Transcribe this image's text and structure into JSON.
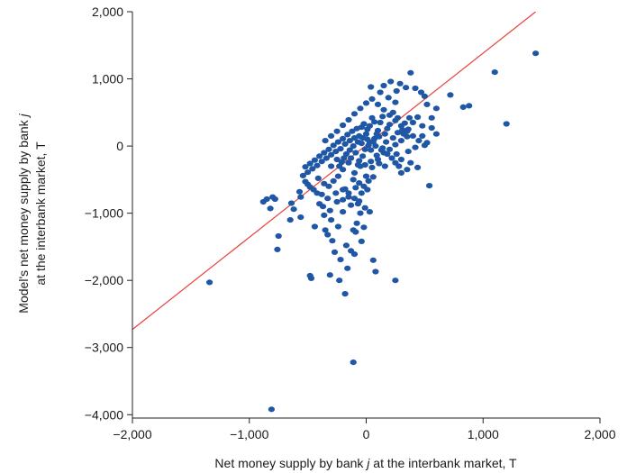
{
  "chart_data": {
    "type": "scatter",
    "title": "",
    "xlabel_parts": [
      "Net money supply by bank ",
      "j",
      " at the interbank market, T"
    ],
    "ylabel_line1_parts": [
      "Model's net money supply by bank ",
      "j"
    ],
    "ylabel_line2": "at the interbank market, T",
    "xlim": [
      -2000,
      2000
    ],
    "ylim": [
      -4050,
      2000
    ],
    "x_ticks": [
      -2000,
      -1000,
      0,
      1000,
      2000
    ],
    "x_tick_labels": [
      "−2,000",
      "−1,000",
      "0",
      "1,000",
      "2,000"
    ],
    "y_ticks": [
      -4000,
      -3000,
      -2000,
      -1000,
      0,
      1000,
      2000
    ],
    "y_tick_labels": [
      "−4,000",
      "−3,000",
      "−2,000",
      "−1,000",
      "0",
      "1,000",
      "2,000"
    ],
    "grid": false,
    "legend": "none",
    "reference_line": {
      "type": "fit",
      "x": [
        -2000,
        1450
      ],
      "y": [
        -2730,
        2000
      ],
      "color": "#e8403a"
    },
    "point_color": "#1f57a6",
    "points": [
      [
        -1340,
        -2030
      ],
      [
        -810,
        -3920
      ],
      [
        -110,
        -3220
      ],
      [
        -850,
        -790
      ],
      [
        -800,
        -760
      ],
      [
        -780,
        -790
      ],
      [
        -650,
        -1100
      ],
      [
        -640,
        -850
      ],
      [
        -620,
        -940
      ],
      [
        -560,
        -760
      ],
      [
        -560,
        -1060
      ],
      [
        -520,
        -530
      ],
      [
        -500,
        -570
      ],
      [
        -480,
        -610
      ],
      [
        -420,
        -700
      ],
      [
        -400,
        -860
      ],
      [
        -380,
        -720
      ],
      [
        -370,
        -900
      ],
      [
        -360,
        -1030
      ],
      [
        -350,
        -1250
      ],
      [
        -330,
        -1320
      ],
      [
        -310,
        -960
      ],
      [
        -300,
        -1100
      ],
      [
        -290,
        -1410
      ],
      [
        -270,
        -1580
      ],
      [
        -250,
        -830
      ],
      [
        -240,
        -1200
      ],
      [
        -220,
        -1690
      ],
      [
        -200,
        -980
      ],
      [
        -180,
        -640
      ],
      [
        -170,
        -1480
      ],
      [
        -160,
        -1820
      ],
      [
        -150,
        -760
      ],
      [
        -130,
        -1560
      ],
      [
        -110,
        -1250
      ],
      [
        -100,
        -1610
      ],
      [
        -90,
        -1280
      ],
      [
        -80,
        -1150
      ],
      [
        -70,
        -860
      ],
      [
        -50,
        -1000
      ],
      [
        -40,
        -1420
      ],
      [
        -20,
        -1210
      ],
      [
        -10,
        -920
      ],
      [
        10,
        -650
      ],
      [
        30,
        -980
      ],
      [
        60,
        -1700
      ],
      [
        80,
        -1870
      ],
      [
        250,
        -2000
      ],
      [
        -180,
        -2200
      ],
      [
        -230,
        -2000
      ],
      [
        -310,
        -1920
      ],
      [
        -480,
        -1930
      ],
      [
        -470,
        -1970
      ],
      [
        -760,
        -1540
      ],
      [
        -880,
        -830
      ],
      [
        -820,
        -930
      ],
      [
        -750,
        -1340
      ],
      [
        -440,
        -1200
      ],
      [
        540,
        -590
      ],
      [
        1200,
        330
      ],
      [
        880,
        600
      ],
      [
        1100,
        1100
      ],
      [
        1450,
        1380
      ],
      [
        830,
        580
      ],
      [
        720,
        760
      ],
      [
        600,
        560
      ],
      [
        500,
        740
      ],
      [
        380,
        1090
      ],
      [
        340,
        870
      ],
      [
        260,
        820
      ],
      [
        120,
        800
      ],
      [
        150,
        900
      ],
      [
        210,
        960
      ],
      [
        290,
        930
      ],
      [
        420,
        860
      ],
      [
        470,
        800
      ],
      [
        520,
        620
      ],
      [
        560,
        420
      ],
      [
        560,
        270
      ],
      [
        600,
        180
      ],
      [
        480,
        300
      ],
      [
        440,
        430
      ],
      [
        400,
        350
      ],
      [
        360,
        250
      ],
      [
        320,
        180
      ],
      [
        270,
        420
      ],
      [
        230,
        500
      ],
      [
        200,
        320
      ],
      [
        180,
        260
      ],
      [
        140,
        440
      ],
      [
        120,
        350
      ],
      [
        100,
        230
      ],
      [
        90,
        180
      ],
      [
        70,
        360
      ],
      [
        50,
        420
      ],
      [
        30,
        300
      ],
      [
        10,
        250
      ],
      [
        0,
        180
      ],
      [
        -20,
        330
      ],
      [
        -40,
        280
      ],
      [
        -60,
        150
      ],
      [
        -80,
        260
      ],
      [
        -100,
        120
      ],
      [
        -120,
        220
      ],
      [
        -140,
        80
      ],
      [
        -160,
        170
      ],
      [
        -180,
        30
      ],
      [
        -200,
        110
      ],
      [
        -220,
        -40
      ],
      [
        -240,
        60
      ],
      [
        -260,
        -80
      ],
      [
        -280,
        10
      ],
      [
        -300,
        -130
      ],
      [
        -320,
        -50
      ],
      [
        -340,
        -180
      ],
      [
        -360,
        -100
      ],
      [
        -380,
        -230
      ],
      [
        -400,
        -150
      ],
      [
        -420,
        -290
      ],
      [
        -440,
        -210
      ],
      [
        -460,
        -340
      ],
      [
        -480,
        -260
      ],
      [
        -500,
        -390
      ],
      [
        -520,
        -310
      ],
      [
        -540,
        -440
      ],
      [
        -300,
        -300
      ],
      [
        -250,
        -200
      ],
      [
        -200,
        -350
      ],
      [
        -150,
        -250
      ],
      [
        -100,
        -400
      ],
      [
        -50,
        -300
      ],
      [
        0,
        -450
      ],
      [
        50,
        -320
      ],
      [
        100,
        -200
      ],
      [
        150,
        -100
      ],
      [
        200,
        -50
      ],
      [
        250,
        20
      ],
      [
        300,
        80
      ],
      [
        350,
        140
      ],
      [
        -350,
        80
      ],
      [
        -300,
        150
      ],
      [
        -250,
        220
      ],
      [
        -200,
        310
      ],
      [
        -150,
        390
      ],
      [
        -100,
        480
      ],
      [
        -50,
        560
      ],
      [
        0,
        640
      ],
      [
        50,
        700
      ],
      [
        100,
        620
      ],
      [
        150,
        540
      ],
      [
        200,
        460
      ],
      [
        250,
        380
      ],
      [
        300,
        300
      ],
      [
        350,
        220
      ],
      [
        400,
        150
      ],
      [
        450,
        80
      ],
      [
        500,
        10
      ],
      [
        300,
        -400
      ],
      [
        280,
        -300
      ],
      [
        250,
        -250
      ],
      [
        220,
        -180
      ],
      [
        180,
        -120
      ],
      [
        130,
        -60
      ],
      [
        80,
        0
      ],
      [
        30,
        60
      ],
      [
        -30,
        120
      ],
      [
        -70,
        60
      ],
      [
        -110,
        0
      ],
      [
        -140,
        -60
      ],
      [
        -170,
        -120
      ],
      [
        -190,
        -180
      ],
      [
        -210,
        -240
      ],
      [
        -230,
        -300
      ],
      [
        -110,
        -500
      ],
      [
        -60,
        -550
      ],
      [
        -20,
        -600
      ],
      [
        20,
        -520
      ],
      [
        60,
        -460
      ],
      [
        -260,
        -700
      ],
      [
        -200,
        -650
      ],
      [
        -150,
        -700
      ],
      [
        -100,
        -780
      ],
      [
        -60,
        -820
      ],
      [
        -240,
        -450
      ],
      [
        -280,
        -520
      ],
      [
        -320,
        -600
      ],
      [
        -360,
        -560
      ],
      [
        -410,
        -480
      ],
      [
        440,
        -320
      ],
      [
        380,
        -250
      ],
      [
        350,
        -350
      ],
      [
        300,
        -200
      ],
      [
        260,
        -120
      ],
      [
        360,
        -80
      ],
      [
        420,
        -20
      ],
      [
        480,
        150
      ],
      [
        520,
        50
      ],
      [
        -30,
        -150
      ],
      [
        -60,
        -220
      ],
      [
        -90,
        -100
      ],
      [
        -130,
        -180
      ],
      [
        -40,
        40
      ],
      [
        10,
        100
      ],
      [
        60,
        60
      ],
      [
        110,
        140
      ],
      [
        160,
        180
      ],
      [
        40,
        -60
      ],
      [
        90,
        -140
      ],
      [
        140,
        -30
      ],
      [
        -10,
        -50
      ],
      [
        20,
        10
      ],
      [
        70,
        110
      ],
      [
        -70,
        -280
      ],
      [
        -10,
        -280
      ],
      [
        40,
        -230
      ],
      [
        110,
        -260
      ],
      [
        160,
        -300
      ],
      [
        170,
        60
      ],
      [
        230,
        120
      ],
      [
        270,
        200
      ],
      [
        310,
        240
      ],
      [
        330,
        340
      ],
      [
        370,
        420
      ],
      [
        -90,
        -620
      ],
      [
        -40,
        -700
      ],
      [
        -200,
        -800
      ],
      [
        -130,
        -880
      ],
      [
        -330,
        -780
      ],
      [
        -450,
        -650
      ],
      [
        -570,
        -680
      ],
      [
        40,
        880
      ],
      [
        250,
        650
      ],
      [
        190,
        720
      ]
    ]
  }
}
